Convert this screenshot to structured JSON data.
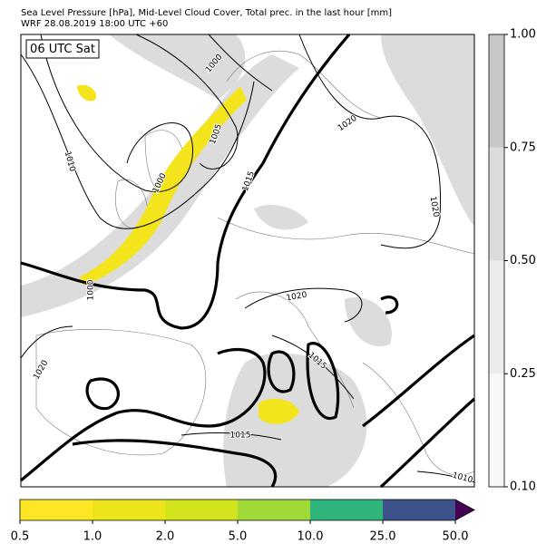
{
  "header": {
    "title": "Sea Level Pressure [hPa], Mid-Level Cloud Cover, Total prec. in the last hour [mm]",
    "subtitle": "WRF 28.08.2019 18:00 UTC +60"
  },
  "map": {
    "badge": "06 UTC Sat",
    "contour_labels": [
      "1000",
      "1005",
      "1000",
      "1010",
      "1000",
      "1015",
      "1020",
      "1020",
      "1020",
      "1020",
      "1015",
      "1015",
      "1010"
    ]
  },
  "cloud_colorbar": {
    "colors": [
      "#f7f7f7",
      "#ececec",
      "#dcdcdc",
      "#c8c8c8"
    ],
    "ticks": [
      {
        "value": 0.1,
        "label": "0.10"
      },
      {
        "value": 0.25,
        "label": "0.25"
      },
      {
        "value": 0.5,
        "label": "0.50"
      },
      {
        "value": 0.75,
        "label": "0.75"
      },
      {
        "value": 1,
        "label": "1.00"
      }
    ]
  },
  "precip_colorbar": {
    "colors": [
      "#fde725",
      "#ece51b",
      "#d2e21b",
      "#a0da39",
      "#2fb47c",
      "#3b528b"
    ],
    "extend_color": "#440154",
    "ticks": [
      0.5,
      {
        "value": 1,
        "label": "1.0"
      },
      {
        "value": 2,
        "label": "2.0"
      },
      {
        "value": 5,
        "label": "5.0"
      },
      {
        "value": 10,
        "label": "10.0"
      },
      {
        "value": 25,
        "label": "25.0"
      },
      {
        "value": 50,
        "label": "50.0"
      }
    ]
  }
}
